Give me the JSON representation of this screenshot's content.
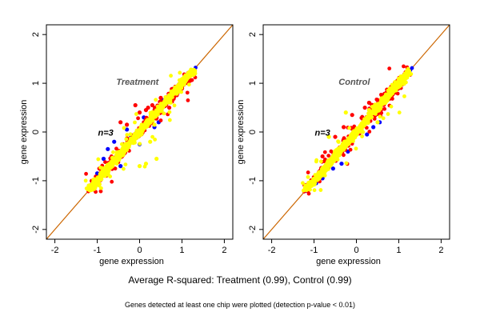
{
  "summary": "Average R-squared: Treatment (0.99), Control (0.99)",
  "caption": "Genes detected at least one chip were plotted (detection p-value < 0.01)",
  "colors": {
    "background": "#ffffff",
    "panel_border": "#000000",
    "diagonal": "#cc6600",
    "series": [
      "#0000ff",
      "#ff0000",
      "#ffff00"
    ]
  },
  "chart_data": [
    {
      "type": "scatter",
      "title": "Treatment",
      "annotation": "n=3",
      "xlabel": "gene expression",
      "ylabel": "gene expression",
      "xlim": [
        -2.2,
        2.2
      ],
      "ylim": [
        -2.2,
        2.2
      ],
      "xticks": [
        "-2",
        "-1",
        "0",
        "1",
        "2"
      ],
      "yticks": [
        "-2",
        "-1",
        "0",
        "1",
        "2"
      ],
      "grid": false,
      "reference_line": "y = x",
      "point_cloud": {
        "x_range": [
          -1.2,
          1.25
        ],
        "main_spread": 0.05,
        "outlier_fraction": 0.08,
        "max_deviation": 0.55
      },
      "series": [
        {
          "color": "#0000ff",
          "x": [
            -0.85,
            -0.6,
            -0.45,
            -0.3,
            -0.2,
            0.1,
            0.35,
            0.55,
            -1.0,
            -0.75,
            0.0,
            0.45
          ],
          "y": [
            -0.55,
            -0.2,
            -0.7,
            0.05,
            -0.1,
            0.3,
            0.1,
            0.65,
            -0.85,
            -0.35,
            -0.25,
            0.2
          ]
        },
        {
          "color": "#ff0000",
          "x": [
            -0.45,
            -0.3,
            -0.1,
            0.0,
            0.2,
            0.3,
            0.5,
            0.7,
            -0.95,
            0.15
          ],
          "y": [
            0.2,
            0.15,
            0.55,
            0.4,
            0.5,
            0.55,
            0.7,
            0.5,
            -0.75,
            0.45
          ]
        },
        {
          "color": "#ffff00",
          "x": [
            -1.2,
            -0.9,
            -0.6,
            -0.3,
            0.0,
            0.3,
            0.6,
            0.9,
            1.2,
            0.0,
            0.15,
            0.25,
            0.35,
            0.4
          ],
          "y": [
            -1.1,
            -0.85,
            -0.55,
            -0.25,
            0.05,
            0.3,
            0.6,
            0.9,
            1.15,
            -0.7,
            -0.65,
            -0.2,
            0.15,
            -0.55
          ]
        }
      ]
    },
    {
      "type": "scatter",
      "title": "Control",
      "annotation": "n=3",
      "xlabel": "gene expression",
      "ylabel": "gene expression",
      "xlim": [
        -2.2,
        2.2
      ],
      "ylim": [
        -2.2,
        2.2
      ],
      "xticks": [
        "-2",
        "-1",
        "0",
        "1",
        "2"
      ],
      "yticks": [
        "-2",
        "-1",
        "0",
        "1",
        "2"
      ],
      "grid": false,
      "reference_line": "y = x",
      "point_cloud": {
        "x_range": [
          -1.2,
          1.25
        ],
        "main_spread": 0.055,
        "outlier_fraction": 0.08,
        "max_deviation": 0.5
      },
      "series": [
        {
          "color": "#0000ff",
          "x": [
            -0.8,
            -0.55,
            -0.2,
            0.25,
            0.4,
            0.55,
            -0.95,
            -0.35
          ],
          "y": [
            -0.95,
            -0.75,
            -0.4,
            -0.05,
            0.1,
            0.2,
            -1.05,
            -0.65
          ]
        },
        {
          "color": "#ff0000",
          "x": [
            -0.5,
            -0.3,
            -0.1,
            0.2,
            0.4,
            0.6,
            0.3,
            -0.8
          ],
          "y": [
            -0.1,
            0.1,
            0.35,
            0.5,
            0.55,
            0.75,
            0.6,
            -0.5
          ]
        },
        {
          "color": "#ffff00",
          "x": [
            -1.2,
            -0.9,
            -0.6,
            -0.3,
            0.0,
            0.3,
            0.6,
            0.9,
            1.2,
            -0.25,
            0.15,
            0.5,
            0.3,
            -0.65
          ],
          "y": [
            -1.1,
            -0.85,
            -0.55,
            -0.25,
            0.05,
            0.3,
            0.6,
            0.9,
            1.15,
            0.4,
            0.0,
            0.2,
            0.45,
            -0.1
          ]
        }
      ]
    }
  ]
}
